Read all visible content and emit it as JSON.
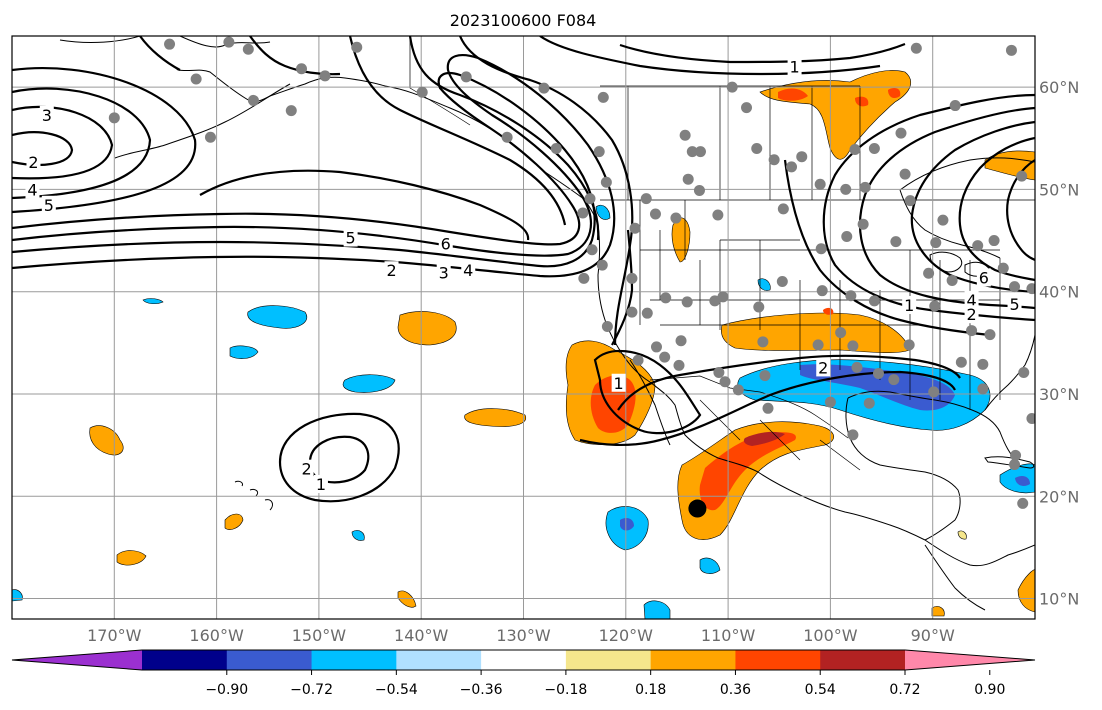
{
  "title": "2023100600 F084",
  "map": {
    "lon_range": [
      -180,
      -80
    ],
    "lat_range": [
      8,
      65
    ],
    "lon_ticks": [
      {
        "lon": -170,
        "label": "170°W"
      },
      {
        "lon": -160,
        "label": "160°W"
      },
      {
        "lon": -150,
        "label": "150°W"
      },
      {
        "lon": -140,
        "label": "140°W"
      },
      {
        "lon": -130,
        "label": "130°W"
      },
      {
        "lon": -120,
        "label": "120°W"
      },
      {
        "lon": -110,
        "label": "110°W"
      },
      {
        "lon": -100,
        "label": "100°W"
      },
      {
        "lon": -90,
        "label": "90°W"
      }
    ],
    "lat_ticks": [
      {
        "lat": 60,
        "label": "60°N"
      },
      {
        "lat": 50,
        "label": "50°N"
      },
      {
        "lat": 40,
        "label": "40°N"
      },
      {
        "lat": 30,
        "label": "30°N"
      },
      {
        "lat": 20,
        "label": "20°N"
      },
      {
        "lat": 10,
        "label": "10°N"
      }
    ],
    "grid": true
  },
  "colorbar": {
    "colors": [
      "#9b30d0",
      "#00008b",
      "#3a5bd0",
      "#00bfff",
      "#b0e0ff",
      "#ffffff",
      "#f5e68c",
      "#ffa500",
      "#ff4500",
      "#b22222",
      "#ff88aa"
    ],
    "labels": [
      "−0.90",
      "−0.72",
      "−0.54",
      "−0.36",
      "−0.18",
      "0.18",
      "0.36",
      "0.54",
      "0.72",
      "0.90"
    ]
  },
  "contour_labels": [
    {
      "text": "3",
      "lon": -176.6,
      "lat": 57.2
    },
    {
      "text": "2",
      "lon": -177.9,
      "lat": 52.6
    },
    {
      "text": "4",
      "lon": -178.0,
      "lat": 49.9
    },
    {
      "text": "5",
      "lon": -176.4,
      "lat": 48.4
    },
    {
      "text": "5",
      "lon": -146.9,
      "lat": 45.2
    },
    {
      "text": "6",
      "lon": -137.6,
      "lat": 44.6
    },
    {
      "text": "2",
      "lon": -142.9,
      "lat": 42.0
    },
    {
      "text": "3",
      "lon": -137.8,
      "lat": 41.8
    },
    {
      "text": "4",
      "lon": -135.4,
      "lat": 42.0
    },
    {
      "text": "1",
      "lon": -103.5,
      "lat": 61.9
    },
    {
      "text": "1",
      "lon": -120.7,
      "lat": 31.0
    },
    {
      "text": "2",
      "lon": -100.7,
      "lat": 32.5
    },
    {
      "text": "2",
      "lon": -151.2,
      "lat": 22.6
    },
    {
      "text": "1",
      "lon": -149.8,
      "lat": 21.1
    },
    {
      "text": "6",
      "lon": -85.0,
      "lat": 41.3
    },
    {
      "text": "4",
      "lon": -86.2,
      "lat": 39.1
    },
    {
      "text": "5",
      "lon": -82.0,
      "lat": 38.7
    },
    {
      "text": "2",
      "lon": -86.2,
      "lat": 37.7
    },
    {
      "text": "1",
      "lon": -92.3,
      "lat": 38.6
    }
  ],
  "stations": [
    {
      "lon": -164.6,
      "lat": 64.2
    },
    {
      "lon": -158.8,
      "lat": 64.4
    },
    {
      "lon": -156.9,
      "lat": 63.7
    },
    {
      "lon": -151.7,
      "lat": 61.8
    },
    {
      "lon": -162.0,
      "lat": 60.8
    },
    {
      "lon": -156.4,
      "lat": 58.7
    },
    {
      "lon": -152.7,
      "lat": 57.7
    },
    {
      "lon": -170.0,
      "lat": 57.0
    },
    {
      "lon": -160.6,
      "lat": 55.1
    },
    {
      "lon": -149.4,
      "lat": 61.1
    },
    {
      "lon": -146.3,
      "lat": 63.9
    },
    {
      "lon": -139.9,
      "lat": 59.5
    },
    {
      "lon": -135.6,
      "lat": 61.0
    },
    {
      "lon": -128.0,
      "lat": 59.9
    },
    {
      "lon": -131.6,
      "lat": 55.1
    },
    {
      "lon": -126.8,
      "lat": 54.0
    },
    {
      "lon": -122.2,
      "lat": 59.0
    },
    {
      "lon": -122.6,
      "lat": 53.7
    },
    {
      "lon": -123.5,
      "lat": 49.1
    },
    {
      "lon": -124.2,
      "lat": 47.7
    },
    {
      "lon": -121.9,
      "lat": 50.7
    },
    {
      "lon": -118.0,
      "lat": 49.1
    },
    {
      "lon": -114.2,
      "lat": 55.3
    },
    {
      "lon": -113.5,
      "lat": 53.7
    },
    {
      "lon": -112.7,
      "lat": 53.7
    },
    {
      "lon": -113.9,
      "lat": 51.0
    },
    {
      "lon": -112.8,
      "lat": 49.9
    },
    {
      "lon": -109.6,
      "lat": 60.0
    },
    {
      "lon": -108.2,
      "lat": 58.0
    },
    {
      "lon": -107.2,
      "lat": 54.0
    },
    {
      "lon": -105.5,
      "lat": 52.9
    },
    {
      "lon": -103.8,
      "lat": 52.2
    },
    {
      "lon": -102.8,
      "lat": 53.2
    },
    {
      "lon": -101.0,
      "lat": 50.5
    },
    {
      "lon": -98.5,
      "lat": 50.0
    },
    {
      "lon": -96.6,
      "lat": 50.2
    },
    {
      "lon": -95.7,
      "lat": 54.0
    },
    {
      "lon": -93.1,
      "lat": 55.5
    },
    {
      "lon": -92.7,
      "lat": 51.5
    },
    {
      "lon": -97.6,
      "lat": 53.9
    },
    {
      "lon": -91.6,
      "lat": 63.8
    },
    {
      "lon": -87.8,
      "lat": 58.2
    },
    {
      "lon": -82.3,
      "lat": 63.6
    },
    {
      "lon": -81.3,
      "lat": 51.3
    },
    {
      "lon": -104.6,
      "lat": 48.1
    },
    {
      "lon": -111.0,
      "lat": 47.5
    },
    {
      "lon": -115.1,
      "lat": 47.2
    },
    {
      "lon": -117.1,
      "lat": 47.6
    },
    {
      "lon": -119.1,
      "lat": 46.2
    },
    {
      "lon": -123.3,
      "lat": 44.1
    },
    {
      "lon": -122.3,
      "lat": 42.6
    },
    {
      "lon": -124.1,
      "lat": 41.3
    },
    {
      "lon": -119.4,
      "lat": 38.0
    },
    {
      "lon": -116.1,
      "lat": 39.4
    },
    {
      "lon": -114.0,
      "lat": 39.0
    },
    {
      "lon": -111.3,
      "lat": 39.1
    },
    {
      "lon": -110.5,
      "lat": 39.5
    },
    {
      "lon": -107.0,
      "lat": 38.5
    },
    {
      "lon": -104.7,
      "lat": 41.0
    },
    {
      "lon": -100.8,
      "lat": 40.1
    },
    {
      "lon": -98.0,
      "lat": 39.6
    },
    {
      "lon": -100.9,
      "lat": 44.2
    },
    {
      "lon": -98.4,
      "lat": 45.4
    },
    {
      "lon": -96.8,
      "lat": 46.6
    },
    {
      "lon": -93.6,
      "lat": 44.9
    },
    {
      "lon": -89.7,
      "lat": 44.8
    },
    {
      "lon": -90.4,
      "lat": 41.8
    },
    {
      "lon": -88.1,
      "lat": 41.1
    },
    {
      "lon": -85.6,
      "lat": 44.5
    },
    {
      "lon": -84.0,
      "lat": 45.0
    },
    {
      "lon": -83.1,
      "lat": 42.3
    },
    {
      "lon": -82.0,
      "lat": 40.5
    },
    {
      "lon": -80.3,
      "lat": 40.3
    },
    {
      "lon": -92.2,
      "lat": 48.9
    },
    {
      "lon": -89.0,
      "lat": 47.0
    },
    {
      "lon": -95.7,
      "lat": 39.1
    },
    {
      "lon": -99.0,
      "lat": 36.0
    },
    {
      "lon": -101.2,
      "lat": 34.8
    },
    {
      "lon": -106.6,
      "lat": 35.1
    },
    {
      "lon": -106.4,
      "lat": 31.8
    },
    {
      "lon": -110.9,
      "lat": 32.1
    },
    {
      "lon": -114.6,
      "lat": 35.2
    },
    {
      "lon": -117.0,
      "lat": 34.6
    },
    {
      "lon": -116.2,
      "lat": 33.6
    },
    {
      "lon": -121.8,
      "lat": 36.6
    },
    {
      "lon": -119.4,
      "lat": 41.3
    },
    {
      "lon": -117.9,
      "lat": 37.9
    },
    {
      "lon": -97.4,
      "lat": 32.6
    },
    {
      "lon": -95.3,
      "lat": 32.0
    },
    {
      "lon": -97.8,
      "lat": 34.7
    },
    {
      "lon": -92.3,
      "lat": 34.8
    },
    {
      "lon": -89.8,
      "lat": 38.6
    },
    {
      "lon": -86.2,
      "lat": 36.2
    },
    {
      "lon": -84.4,
      "lat": 35.8
    },
    {
      "lon": -87.2,
      "lat": 33.1
    },
    {
      "lon": -85.1,
      "lat": 32.9
    },
    {
      "lon": -81.1,
      "lat": 32.1
    },
    {
      "lon": -85.1,
      "lat": 30.5
    },
    {
      "lon": -89.9,
      "lat": 30.2
    },
    {
      "lon": -93.8,
      "lat": 31.4
    },
    {
      "lon": -96.2,
      "lat": 29.1
    },
    {
      "lon": -97.8,
      "lat": 26.0
    },
    {
      "lon": -100.0,
      "lat": 29.2
    },
    {
      "lon": -106.1,
      "lat": 28.6
    },
    {
      "lon": -109.0,
      "lat": 30.4
    },
    {
      "lon": -110.3,
      "lat": 31.2
    },
    {
      "lon": -114.8,
      "lat": 32.8
    },
    {
      "lon": -118.8,
      "lat": 33.3
    },
    {
      "lon": -80.3,
      "lat": 27.6
    },
    {
      "lon": -81.9,
      "lat": 24.0
    },
    {
      "lon": -81.2,
      "lat": 19.3
    },
    {
      "lon": -82.0,
      "lat": 23.1
    }
  ],
  "storm_marker": {
    "lon": -113.0,
    "lat": 18.8
  }
}
